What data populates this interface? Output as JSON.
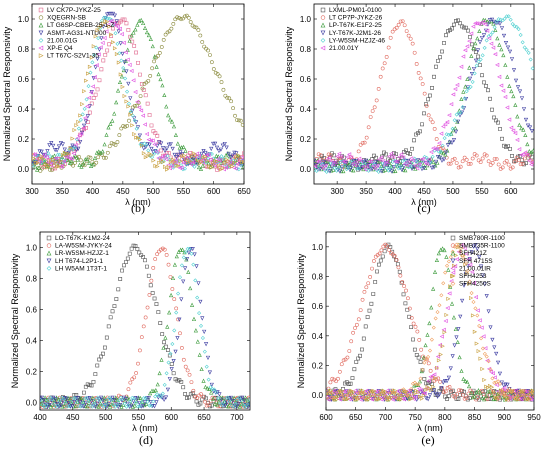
{
  "chart_data": [
    {
      "id": "b",
      "type": "scatter",
      "panel_label": "(b)",
      "xlabel": "λ (nm)",
      "ylabel": "Normalized Spectral Responsivity",
      "xlim": [
        300,
        650
      ],
      "ylim": [
        -0.1,
        1.1
      ],
      "xticks": [
        300,
        350,
        400,
        450,
        500,
        550,
        600,
        650
      ],
      "yticks": [
        0.0,
        0.2,
        0.4,
        0.6,
        0.8,
        1.0
      ],
      "legend_position": "top-left",
      "series": [
        {
          "name": "LV CK7P-JYKZ-25",
          "color": "#e06a8f",
          "marker": "square",
          "peak": 445,
          "width": 33,
          "base": 0.05
        },
        {
          "name": "XQEGRN-SB",
          "color": "#8a8a3c",
          "marker": "circle",
          "peak": 550,
          "width": 58,
          "base": 0.03
        },
        {
          "name": "LT G6SP-CBEB-25-1-Z",
          "color": "#3a9a3a",
          "marker": "triangle-up",
          "peak": 480,
          "width": 30,
          "base": 0.05
        },
        {
          "name": "ASMT-AG31-NTU00",
          "color": "#3a3aa0",
          "marker": "triangle-down",
          "peak": 430,
          "width": 26,
          "base": 0.1
        },
        {
          "name": "21.00.01G",
          "color": "#4fd0d0",
          "marker": "diamond",
          "peak": 425,
          "width": 28,
          "base": 0.05
        },
        {
          "name": "XP-E Q4",
          "color": "#e04fe0",
          "marker": "triangle-left",
          "peak": 435,
          "width": 30,
          "base": 0.05
        },
        {
          "name": "LT T67C-S2V1-35",
          "color": "#c8a040",
          "marker": "triangle-right",
          "peak": 420,
          "width": 27,
          "base": 0.05
        }
      ]
    },
    {
      "id": "c",
      "type": "scatter",
      "panel_label": "(c)",
      "xlabel": "λ (nm)",
      "ylabel": "Normalized Spectral Responsivity",
      "xlim": [
        260,
        640
      ],
      "ylim": [
        -0.1,
        1.1
      ],
      "xticks": [
        300,
        350,
        400,
        450,
        500,
        550,
        600
      ],
      "yticks": [
        0.0,
        0.2,
        0.4,
        0.6,
        0.8,
        1.0
      ],
      "legend_position": "top-left",
      "series": [
        {
          "name": "LXML-PM01-0100",
          "color": "#555555",
          "marker": "square",
          "peak": 510,
          "width": 40,
          "base": 0.05
        },
        {
          "name": "LT CP7P-JYKZ-26",
          "color": "#e06a5f",
          "marker": "circle",
          "peak": 410,
          "width": 32,
          "base": 0.05
        },
        {
          "name": "LP-T67K-E1F2-25",
          "color": "#3a9a3a",
          "marker": "triangle-up",
          "peak": 560,
          "width": 35,
          "base": 0.02
        },
        {
          "name": "LY-T67K-J2M1-26",
          "color": "#3a3aa0",
          "marker": "triangle-down",
          "peak": 570,
          "width": 38,
          "base": 0.02
        },
        {
          "name": "LY-W5SM-HZJZ-46",
          "color": "#4fd0d0",
          "marker": "diamond",
          "peak": 590,
          "width": 55,
          "base": 0.02
        },
        {
          "name": "21.00.01Y",
          "color": "#e04fe0",
          "marker": "triangle-left",
          "peak": 545,
          "width": 34,
          "base": 0.05
        }
      ]
    },
    {
      "id": "d",
      "type": "scatter",
      "panel_label": "(d)",
      "xlabel": "λ (nm)",
      "ylabel": "Normalized Spectral Responsivity",
      "xlim": [
        400,
        720
      ],
      "ylim": [
        -0.05,
        1.1
      ],
      "xticks": [
        400,
        450,
        500,
        550,
        600,
        650,
        700
      ],
      "yticks": [
        0.0,
        0.2,
        0.4,
        0.6,
        0.8,
        1.0
      ],
      "legend_position": "top-left",
      "series": [
        {
          "name": "LO-T67K-K1M2-24",
          "color": "#555555",
          "marker": "square",
          "peak": 545,
          "width": 33,
          "base": 0.0
        },
        {
          "name": "LA-W5SM-JYKY-24",
          "color": "#e06a5f",
          "marker": "circle",
          "peak": 585,
          "width": 22,
          "base": 0.0
        },
        {
          "name": "LR-W5SM-HZJZ-1",
          "color": "#3a9a3a",
          "marker": "triangle-up",
          "peak": 615,
          "width": 18,
          "base": 0.0
        },
        {
          "name": "LH T674-L2P1-1",
          "color": "#3a3aa0",
          "marker": "triangle-down",
          "peak": 630,
          "width": 16,
          "base": 0.0
        },
        {
          "name": "LH W5AM 1T3T-1",
          "color": "#4fd0d0",
          "marker": "diamond",
          "peak": 625,
          "width": 17,
          "base": 0.0
        }
      ]
    },
    {
      "id": "e",
      "type": "scatter",
      "panel_label": "(e)",
      "xlabel": "λ (nm)",
      "ylabel": "Normalized Spectral Responsivity",
      "xlim": [
        600,
        950
      ],
      "ylim": [
        -0.1,
        1.1
      ],
      "xticks": [
        600,
        650,
        700,
        750,
        800,
        850,
        900,
        950
      ],
      "yticks": [
        0.0,
        0.2,
        0.4,
        0.6,
        0.8,
        1.0
      ],
      "legend_position": "top-right",
      "series": [
        {
          "name": "SMB780R-1100",
          "color": "#555555",
          "marker": "square",
          "peak": 705,
          "width": 30,
          "base": 0.0
        },
        {
          "name": "SMB735R-1100",
          "color": "#e06a5f",
          "marker": "circle",
          "peak": 700,
          "width": 40,
          "base": 0.0
        },
        {
          "name": "SFH421Z",
          "color": "#3a9a3a",
          "marker": "triangle-up",
          "peak": 795,
          "width": 18,
          "base": 0.0
        },
        {
          "name": "SFH 4715S",
          "color": "#3a3aa0",
          "marker": "triangle-down",
          "peak": 850,
          "width": 22,
          "base": 0.0
        },
        {
          "name": "21.00.01IR",
          "color": "#e04fe0",
          "marker": "triangle-left",
          "peak": 830,
          "width": 25,
          "base": 0.0
        },
        {
          "name": "SFH4253",
          "color": "#c8a040",
          "marker": "triangle-right",
          "peak": 825,
          "width": 20,
          "base": 0.0
        },
        {
          "name": "SFH4250S",
          "color": "#f0a060",
          "marker": "diamond",
          "peak": 820,
          "width": 30,
          "base": 0.0
        }
      ]
    }
  ]
}
